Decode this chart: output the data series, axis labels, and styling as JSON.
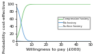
{
  "title": "",
  "xlabel": "Willingness to pay (£000)",
  "ylabel": "Probability cost-effective (%)",
  "ylim": [
    0,
    100
  ],
  "xlim": [
    0,
    50
  ],
  "xticks": [
    0,
    10,
    20,
    30,
    40,
    50
  ],
  "yticks": [
    0,
    20,
    40,
    60,
    80,
    100
  ],
  "legend_labels": [
    "Compression hosiery",
    "No hosiery",
    "Surface hosiery"
  ],
  "line_colors": [
    "#6abf69",
    "#5b9bd5",
    "#a8c8d8"
  ],
  "background_color": "#ffffff",
  "tick_fontsize": 4,
  "label_fontsize": 4.5,
  "sigmoid_x0": 3.0,
  "sigmoid_k": 0.8
}
